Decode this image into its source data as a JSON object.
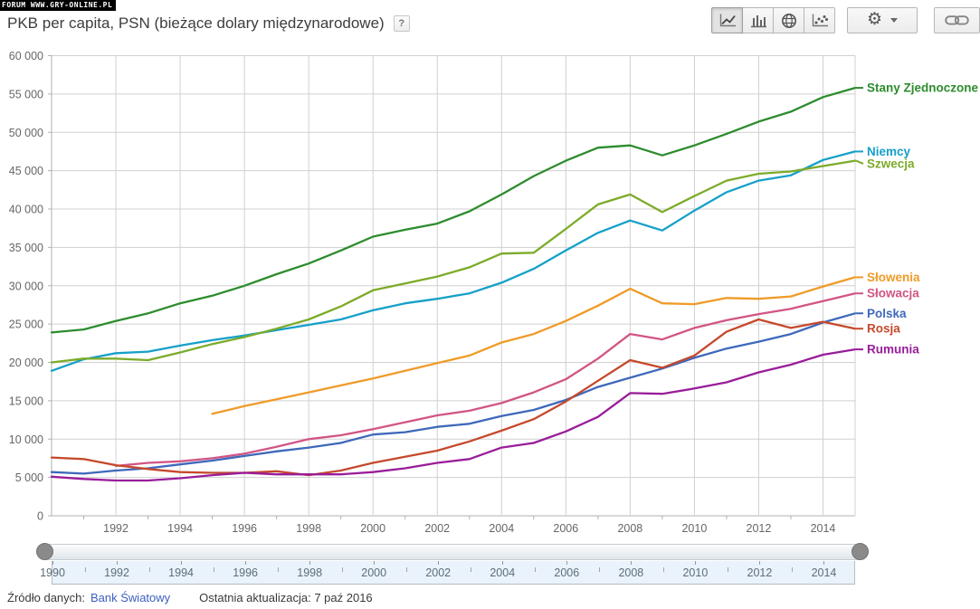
{
  "watermark": "FORUM WWW.GRY-ONLINE.PL",
  "header": {
    "title": "PKB per capita, PSN (bieżące dolary międzynarodowe)",
    "help_label": "?"
  },
  "toolbar": {
    "chart_type_icons": [
      "line-chart",
      "bar-chart",
      "map-globe",
      "scatter-plot"
    ],
    "selected_chart_type": "line-chart",
    "settings_icon": "gear",
    "settings_caret_icon": "chevron-down",
    "share_icon": "link"
  },
  "chart_data": {
    "type": "line",
    "title": "PKB per capita, PSN (bieżące dolary międzynarodowe)",
    "xlabel": "",
    "ylabel": "",
    "x_start": 1990,
    "x_end": 2015,
    "ylim": [
      0,
      60000
    ],
    "ytick_step": 5000,
    "xticks": [
      1992,
      1994,
      1996,
      1998,
      2000,
      2002,
      2004,
      2006,
      2008,
      2010,
      2012,
      2014
    ],
    "grid": true,
    "legend_position": "right",
    "axis_color": "#b0b0b0",
    "grid_color": "#d0d0d0",
    "tick_label_color": "#666666",
    "series": [
      {
        "name": "Stany Zjednoczone",
        "color": "#2d8c2d",
        "start": 1990,
        "values": [
          23900,
          24300,
          25400,
          26400,
          27700,
          28700,
          30000,
          31500,
          32900,
          34600,
          36400,
          37300,
          38100,
          39700,
          41900,
          44300,
          46300,
          48000,
          48300,
          47000,
          48300,
          49800,
          51400,
          52700,
          54600,
          55800
        ]
      },
      {
        "name": "Niemcy",
        "color": "#16a0c8",
        "start": 1990,
        "values": [
          18900,
          20400,
          21200,
          21400,
          22200,
          22900,
          23500,
          24200,
          24900,
          25600,
          26800,
          27700,
          28300,
          29000,
          30400,
          32200,
          34600,
          36900,
          38500,
          37200,
          39800,
          42200,
          43700,
          44400,
          46400,
          47500
        ]
      },
      {
        "name": "Szwecja",
        "color": "#7cab2a",
        "start": 1990,
        "values": [
          20000,
          20500,
          20500,
          20300,
          21300,
          22400,
          23300,
          24400,
          25600,
          27300,
          29400,
          30300,
          31200,
          32400,
          34200,
          34300,
          37400,
          40600,
          41900,
          39600,
          41700,
          43700,
          44600,
          44900,
          45600,
          46300
        ]
      },
      {
        "name": "Słowenia",
        "color": "#ef9b28",
        "start": 1995,
        "values": [
          13300,
          14300,
          15200,
          16100,
          17000,
          17900,
          18900,
          19900,
          20900,
          22600,
          23700,
          25400,
          27400,
          29600,
          27700,
          27600,
          28400,
          28300,
          28600,
          29900,
          31100
        ]
      },
      {
        "name": "Słowacja",
        "color": "#d15584",
        "start": 1992,
        "values": [
          6500,
          6900,
          7100,
          7500,
          8100,
          9000,
          10000,
          10500,
          11300,
          12200,
          13100,
          13700,
          14700,
          16100,
          17800,
          20500,
          23700,
          23000,
          24500,
          25500,
          26300,
          27000,
          28000,
          29000
        ]
      },
      {
        "name": "Polska",
        "color": "#3e68ba",
        "start": 1990,
        "values": [
          5700,
          5500,
          5900,
          6200,
          6700,
          7200,
          7800,
          8400,
          8900,
          9500,
          10600,
          10900,
          11600,
          12000,
          13000,
          13800,
          15100,
          16800,
          18000,
          19200,
          20600,
          21800,
          22700,
          23700,
          25200,
          26400
        ]
      },
      {
        "name": "Rosja",
        "color": "#c5492c",
        "start": 1990,
        "values": [
          7600,
          7400,
          6600,
          6100,
          5700,
          5600,
          5600,
          5800,
          5300,
          5900,
          6900,
          7700,
          8500,
          9700,
          11100,
          12600,
          14900,
          17600,
          20300,
          19300,
          20900,
          24000,
          25600,
          24500,
          25300,
          24400
        ]
      },
      {
        "name": "Rumunia",
        "color": "#991d99",
        "start": 1990,
        "values": [
          5100,
          4800,
          4600,
          4600,
          4900,
          5300,
          5600,
          5400,
          5400,
          5400,
          5700,
          6200,
          6900,
          7400,
          8900,
          9500,
          11000,
          12900,
          16000,
          15900,
          16600,
          17400,
          18700,
          19700,
          21000,
          21700
        ]
      }
    ]
  },
  "slider": {
    "label_years": [
      1990,
      1992,
      1994,
      1996,
      1998,
      2000,
      2002,
      2004,
      2006,
      2008,
      2010,
      2012,
      2014
    ],
    "range_start": 1990,
    "range_end": 2015
  },
  "footer": {
    "source_label": "Źródło danych:",
    "source_link": "Bank Światowy",
    "updated": "Ostatnia aktualizacja: 7 paź 2016"
  }
}
